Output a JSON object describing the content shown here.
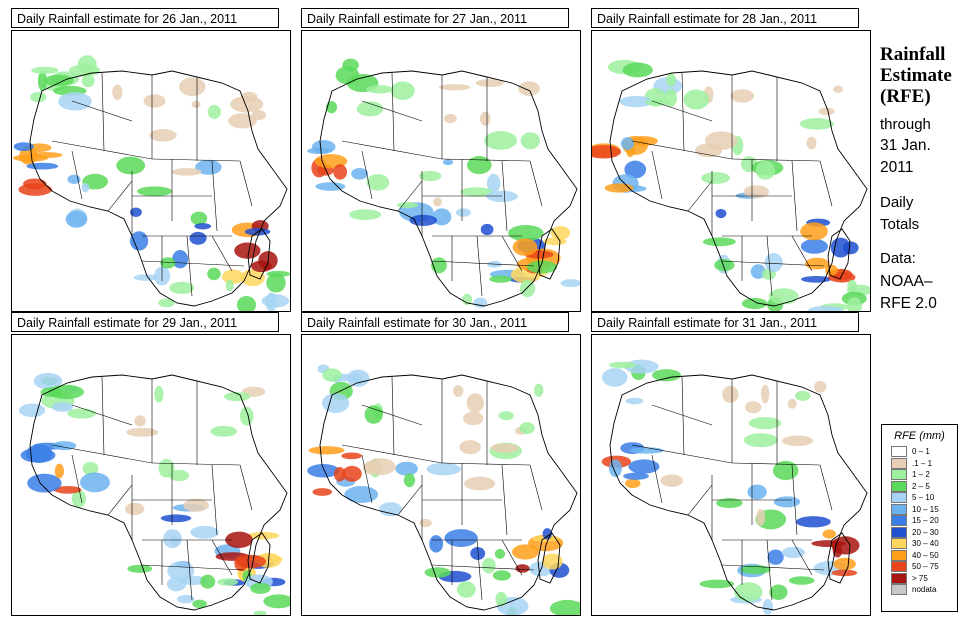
{
  "panels": [
    {
      "title": "Daily Rainfall estimate for  26 Jan., 2011"
    },
    {
      "title": "Daily Rainfall estimate for  27 Jan., 2011"
    },
    {
      "title": "Daily Rainfall estimate for  28 Jan., 2011"
    },
    {
      "title": "Daily Rainfall estimate for  29 Jan., 2011"
    },
    {
      "title": "Daily Rainfall estimate for  30 Jan., 2011"
    },
    {
      "title": "Daily Rainfall estimate for  31 Jan., 2011"
    }
  ],
  "side": {
    "title_line1": "Rainfall",
    "title_line2": "Estimate",
    "title_line3": "(RFE)",
    "through": "through",
    "date_line1": "31 Jan.",
    "date_line2": "2011",
    "daily_line1": "Daily",
    "daily_line2": "Totals",
    "data_label": "Data:",
    "source_line1": "NOAA–",
    "source_line2": "RFE 2.0"
  },
  "legend": {
    "title": "RFE (mm)",
    "items": [
      {
        "label": "0 – 1",
        "color": "#ffffff"
      },
      {
        "label": ".1 – 1",
        "color": "#e6cfb4"
      },
      {
        "label": "1 – 2",
        "color": "#9df09d"
      },
      {
        "label": "2 – 5",
        "color": "#5ad95a"
      },
      {
        "label": "5 – 10",
        "color": "#a7d3f5"
      },
      {
        "label": "10 – 15",
        "color": "#6cb3ee"
      },
      {
        "label": "15 – 20",
        "color": "#3a7ee6"
      },
      {
        "label": "20 – 30",
        "color": "#1f50d0"
      },
      {
        "label": "30 – 40",
        "color": "#ffd75e"
      },
      {
        "label": "40 – 50",
        "color": "#ff9f1a"
      },
      {
        "label": "50 – 75",
        "color": "#e8431a"
      },
      {
        "label": "> 75",
        "color": "#a8140f"
      },
      {
        "label": "nodata",
        "color": "#c8c8c8"
      }
    ]
  }
}
